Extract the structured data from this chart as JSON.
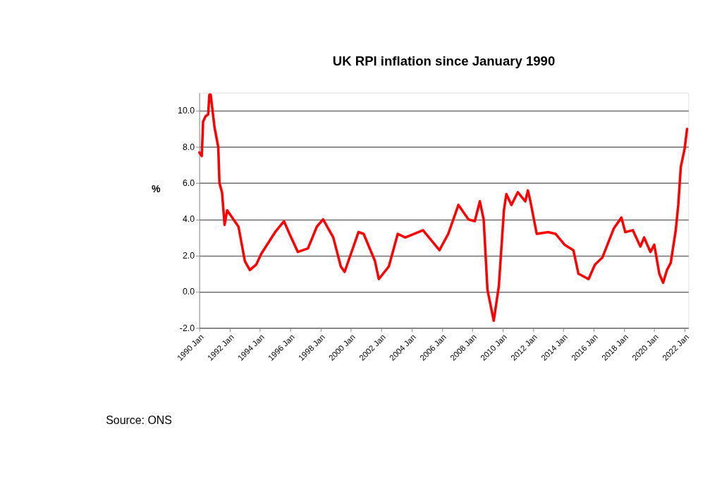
{
  "chart_data": {
    "type": "line",
    "title": "UK RPI inflation since January 1990",
    "ylabel": "%",
    "x": [
      "1990-01",
      "1990-03",
      "1990-04",
      "1990-06",
      "1990-08",
      "1990-09",
      "1990-10",
      "1991-01",
      "1991-04",
      "1991-05",
      "1991-07",
      "1991-09",
      "1991-11",
      "1992-08",
      "1993-01",
      "1993-05",
      "1993-10",
      "1994-02",
      "1995-01",
      "1995-08",
      "1996-01",
      "1996-07",
      "1997-03",
      "1997-10",
      "1998-03",
      "1998-11",
      "1999-05",
      "1999-08",
      "2000-07",
      "2000-11",
      "2001-08",
      "2001-11",
      "2002-07",
      "2003-02",
      "2003-08",
      "2004-10",
      "2005-11",
      "2006-06",
      "2007-02",
      "2007-10",
      "2008-03",
      "2008-07",
      "2008-10",
      "2009-01",
      "2009-06",
      "2009-10",
      "2010-02",
      "2010-04",
      "2010-08",
      "2011-01",
      "2011-07",
      "2011-09",
      "2011-11",
      "2012-04",
      "2013-01",
      "2013-07",
      "2014-02",
      "2014-09",
      "2015-01",
      "2015-09",
      "2016-02",
      "2016-08",
      "2017-05",
      "2017-11",
      "2018-02",
      "2018-08",
      "2019-02",
      "2019-05",
      "2019-10",
      "2020-01",
      "2020-05",
      "2020-08",
      "2020-11",
      "2021-02",
      "2021-06",
      "2021-08",
      "2021-10",
      "2022-01",
      "2022-03"
    ],
    "series": [
      {
        "color": "#ff0000",
        "values": [
          7.7,
          7.5,
          9.4,
          9.7,
          9.8,
          10.9,
          10.9,
          9.1,
          8.0,
          6.0,
          5.5,
          3.7,
          4.5,
          3.6,
          1.7,
          1.2,
          1.5,
          2.1,
          3.3,
          3.9,
          3.1,
          2.2,
          2.4,
          3.6,
          4.0,
          3.0,
          1.4,
          1.1,
          3.3,
          3.2,
          1.7,
          0.7,
          1.4,
          3.2,
          3.0,
          3.4,
          2.3,
          3.2,
          4.8,
          4.0,
          3.9,
          5.0,
          4.0,
          0.1,
          -1.6,
          0.3,
          4.5,
          5.4,
          4.8,
          5.5,
          5.0,
          5.6,
          5.0,
          3.2,
          3.3,
          3.2,
          2.6,
          2.3,
          1.0,
          0.7,
          1.5,
          1.9,
          3.5,
          4.1,
          3.3,
          3.4,
          2.5,
          3.0,
          2.2,
          2.6,
          1.0,
          0.5,
          1.2,
          1.6,
          3.4,
          4.8,
          6.9,
          7.9,
          9.0
        ]
      }
    ],
    "xlim": [
      "1990-01",
      "2022-04"
    ],
    "xticks": [
      {
        "value": "1990-01",
        "label": "1990 Jan"
      },
      {
        "value": "1992-01",
        "label": "1992 Jan"
      },
      {
        "value": "1994-01",
        "label": "1994 Jan"
      },
      {
        "value": "1996-01",
        "label": "1996 Jan"
      },
      {
        "value": "1998-01",
        "label": "1998 Jan"
      },
      {
        "value": "2000-01",
        "label": "2000 Jan"
      },
      {
        "value": "2002-01",
        "label": "2002 Jan"
      },
      {
        "value": "2004-01",
        "label": "2004 Jan"
      },
      {
        "value": "2006-01",
        "label": "2006 Jan"
      },
      {
        "value": "2008-01",
        "label": "2008 Jan"
      },
      {
        "value": "2010-01",
        "label": "2010 Jan"
      },
      {
        "value": "2012-01",
        "label": "2012 Jan"
      },
      {
        "value": "2014-01",
        "label": "2014 Jan"
      },
      {
        "value": "2016-01",
        "label": "2016 Jan"
      },
      {
        "value": "2018-01",
        "label": "2018 Jan"
      },
      {
        "value": "2020-01",
        "label": "2020 Jan"
      },
      {
        "value": "2022-01",
        "label": "2022 Jan"
      }
    ],
    "ylim": [
      -2,
      11
    ],
    "yticks": [
      {
        "value": -2,
        "label": "-2.0"
      },
      {
        "value": 0,
        "label": "0.0"
      },
      {
        "value": 2,
        "label": "2.0"
      },
      {
        "value": 4,
        "label": "4.0"
      },
      {
        "value": 6,
        "label": "6.0"
      },
      {
        "value": 8,
        "label": "8.0"
      },
      {
        "value": 10,
        "label": "10.0"
      }
    ],
    "grid": "y",
    "marker": "none",
    "line_style": "solid",
    "annotations": [
      "Source: ONS"
    ]
  }
}
